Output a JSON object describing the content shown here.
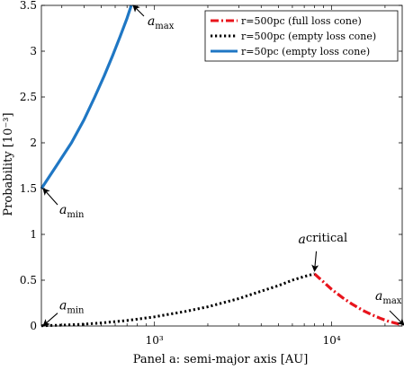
{
  "chart_data": {
    "type": "line",
    "title": "",
    "xlabel": "Panel a: semi-major axis [AU]",
    "ylabel": "Probability [10⁻³]",
    "x_scale": "log",
    "xlim": [
      230,
      25000
    ],
    "ylim": [
      0,
      3.5
    ],
    "grid": false,
    "legend_position": "top-right",
    "x_ticks": [
      {
        "value": 1000,
        "label": "10³"
      },
      {
        "value": 10000,
        "label": "10⁴"
      }
    ],
    "y_ticks": [
      {
        "value": 0,
        "label": "0"
      },
      {
        "value": 0.5,
        "label": "0.5"
      },
      {
        "value": 1,
        "label": "1"
      },
      {
        "value": 1.5,
        "label": "1.5"
      },
      {
        "value": 2,
        "label": "2"
      },
      {
        "value": 2.5,
        "label": "2.5"
      },
      {
        "value": 3,
        "label": "3"
      },
      {
        "value": 3.5,
        "label": "3.5"
      }
    ],
    "series": [
      {
        "name": "r=500pc (full loss cone)",
        "color": "#e8141c",
        "style": "dashdot",
        "x": [
          8000,
          9000,
          10000,
          11500,
          13000,
          15000,
          17000,
          19000,
          21000,
          23000,
          25000
        ],
        "y": [
          0.57,
          0.48,
          0.4,
          0.31,
          0.24,
          0.17,
          0.12,
          0.08,
          0.05,
          0.03,
          0.01
        ]
      },
      {
        "name": "r=500pc (empty loss cone)",
        "color": "#000000",
        "style": "dotted",
        "x": [
          230,
          300,
          400,
          500,
          700,
          1000,
          1500,
          2000,
          3000,
          4000,
          5000,
          6000,
          7000,
          8000
        ],
        "y": [
          0.003,
          0.009,
          0.02,
          0.033,
          0.06,
          0.1,
          0.16,
          0.21,
          0.3,
          0.38,
          0.44,
          0.5,
          0.54,
          0.57
        ]
      },
      {
        "name": "r=50pc (empty loss cone)",
        "color": "#1f77c4",
        "style": "solid",
        "x": [
          230,
          280,
          340,
          400,
          460,
          520,
          580,
          640,
          700,
          740
        ],
        "y": [
          1.5,
          1.75,
          2.0,
          2.25,
          2.5,
          2.73,
          2.95,
          3.16,
          3.36,
          3.5
        ]
      }
    ],
    "annotations": [
      {
        "label": "a",
        "sub": "max",
        "x": 740,
        "y": 3.5
      },
      {
        "label": "a",
        "sub": "min",
        "x": 230,
        "y": 1.5
      },
      {
        "label": "a",
        "sub": "min",
        "x": 230,
        "y": 0.003
      },
      {
        "label": "a",
        "sub": "critical",
        "x": 8000,
        "y": 0.57
      },
      {
        "label": "a",
        "sub": "max",
        "x": 25000,
        "y": 0.01
      }
    ]
  }
}
